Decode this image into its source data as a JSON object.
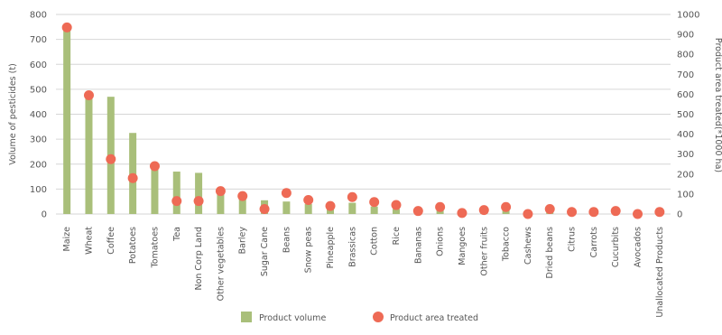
{
  "chart_data": {
    "type": "bar",
    "categories": [
      "Maize",
      "Wheat",
      "Coffee",
      "Potatoes",
      "Tomatoes",
      "Tea",
      "Non Corp Land",
      "Other vegetables",
      "Barley",
      "Sugar Cane",
      "Beans",
      "Snow peas",
      "Pineapple",
      "Brassicas",
      "Cotton",
      "Rice",
      "Bananas",
      "Onions",
      "Mangoes",
      "Other fruits",
      "Tobacco",
      "Cashews",
      "Dried beans",
      "Citrus",
      "Carrots",
      "Cucurbits",
      "Avocados",
      "Unallocated Products"
    ],
    "series": [
      {
        "name": "Product volume",
        "kind": "bar",
        "axis": "left",
        "color": "#a9bf7a",
        "values": [
          745,
          470,
          470,
          325,
          195,
          170,
          165,
          85,
          65,
          55,
          50,
          40,
          30,
          45,
          30,
          20,
          15,
          15,
          8,
          12,
          18,
          5,
          15,
          8,
          8,
          10,
          4,
          4
        ]
      },
      {
        "name": "Product area treated",
        "kind": "scatter",
        "axis": "right",
        "color": "#ee6a55",
        "values": [
          935,
          595,
          275,
          180,
          240,
          65,
          65,
          115,
          90,
          25,
          105,
          70,
          40,
          85,
          60,
          45,
          15,
          35,
          5,
          20,
          35,
          0,
          25,
          10,
          10,
          15,
          0,
          10
        ]
      }
    ],
    "y_left": {
      "label": "Volume of pesticides (t)",
      "ylim": [
        0,
        800
      ],
      "ticks": [
        0,
        100,
        200,
        300,
        400,
        500,
        600,
        700,
        800
      ]
    },
    "y_right": {
      "label": "Product area treated(*1000 ha)",
      "ylim": [
        0,
        1000
      ],
      "ticks": [
        0,
        100,
        200,
        300,
        400,
        500,
        600,
        700,
        800,
        900,
        1000
      ]
    },
    "grid": true,
    "legend": {
      "position": "bottom",
      "items": [
        "Product volume",
        "Product area treated"
      ]
    }
  }
}
